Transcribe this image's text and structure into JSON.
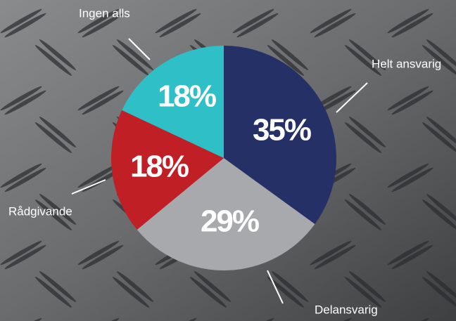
{
  "chart_data": {
    "type": "pie",
    "categories": [
      "Helt ansvarig",
      "Delansvarig",
      "Rådgivande",
      "Ingen alls"
    ],
    "values": [
      35,
      29,
      18,
      18
    ],
    "value_labels": [
      "35%",
      "29%",
      "18%",
      "18%"
    ],
    "colors": [
      "#243066",
      "#a8a9ad",
      "#c01f25",
      "#2fbfc6"
    ]
  }
}
